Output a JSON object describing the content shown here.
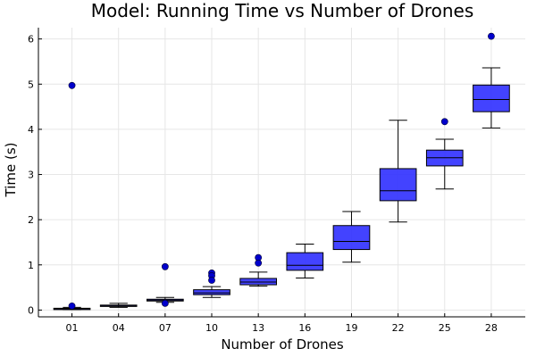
{
  "chart_data": {
    "type": "box",
    "title": "Model: Running Time vs Number of Drones",
    "xlabel": "Number of Drones",
    "ylabel": "Time (s)",
    "ylim": [
      -0.15,
      6.25
    ],
    "yticks": [
      "0",
      "1",
      "2",
      "3",
      "4",
      "5",
      "6"
    ],
    "categories": [
      "01",
      "04",
      "07",
      "10",
      "13",
      "16",
      "19",
      "22",
      "25",
      "28"
    ],
    "grid": true,
    "legend": "none",
    "colors": {
      "box_fill": "#3333ff",
      "box_edge": "#000000",
      "outlier": "#0000cc"
    },
    "boxes": [
      {
        "category": "01",
        "whisker_low": 0.01,
        "q1": 0.02,
        "median": 0.03,
        "q3": 0.04,
        "whisker_high": 0.06,
        "outliers": [
          4.97,
          0.09
        ]
      },
      {
        "category": "04",
        "whisker_low": 0.06,
        "q1": 0.08,
        "median": 0.1,
        "q3": 0.11,
        "whisker_high": 0.15,
        "outliers": []
      },
      {
        "category": "07",
        "whisker_low": 0.17,
        "q1": 0.2,
        "median": 0.22,
        "q3": 0.24,
        "whisker_high": 0.28,
        "outliers": [
          0.96,
          0.15
        ]
      },
      {
        "category": "10",
        "whisker_low": 0.28,
        "q1": 0.34,
        "median": 0.38,
        "q3": 0.45,
        "whisker_high": 0.52,
        "outliers": [
          0.82,
          0.76,
          0.66
        ]
      },
      {
        "category": "13",
        "whisker_low": 0.53,
        "q1": 0.56,
        "median": 0.62,
        "q3": 0.7,
        "whisker_high": 0.84,
        "outliers": [
          1.16,
          1.04
        ]
      },
      {
        "category": "16",
        "whisker_low": 0.71,
        "q1": 0.88,
        "median": 0.99,
        "q3": 1.27,
        "whisker_high": 1.46,
        "outliers": []
      },
      {
        "category": "19",
        "whisker_low": 1.06,
        "q1": 1.34,
        "median": 1.52,
        "q3": 1.87,
        "whisker_high": 2.18,
        "outliers": []
      },
      {
        "category": "22",
        "whisker_low": 1.95,
        "q1": 2.42,
        "median": 2.64,
        "q3": 3.13,
        "whisker_high": 4.2,
        "outliers": []
      },
      {
        "category": "25",
        "whisker_low": 2.68,
        "q1": 3.19,
        "median": 3.37,
        "q3": 3.54,
        "whisker_high": 3.78,
        "outliers": [
          4.17
        ]
      },
      {
        "category": "28",
        "whisker_low": 4.03,
        "q1": 4.39,
        "median": 4.66,
        "q3": 4.98,
        "whisker_high": 5.36,
        "outliers": [
          6.06
        ]
      }
    ]
  }
}
